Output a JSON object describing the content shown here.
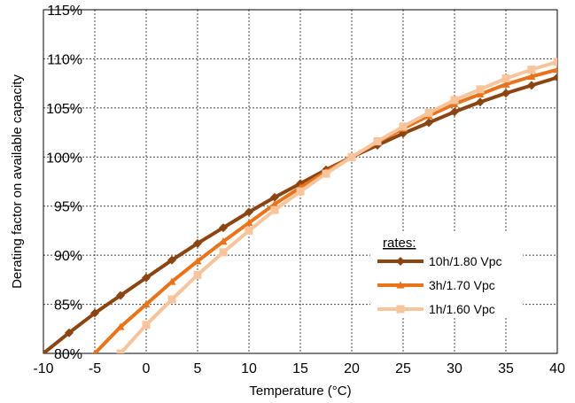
{
  "chart_data": {
    "type": "line",
    "title": "",
    "xlabel": "Temperature (°C)",
    "ylabel": "Derating factor on available capacity",
    "xlim": [
      -10,
      40
    ],
    "ylim": [
      80,
      115
    ],
    "x_ticks": [
      "-10",
      "-5",
      "0",
      "5",
      "10",
      "15",
      "20",
      "25",
      "30",
      "35",
      "40"
    ],
    "y_ticks": [
      "80%",
      "85%",
      "90%",
      "95%",
      "100%",
      "105%",
      "110%",
      "115%"
    ],
    "grid": true,
    "legend": {
      "title": "rates:",
      "placement": "lower-right"
    },
    "series": [
      {
        "name": "10h/1.80 Vpc",
        "color": "#8B4513",
        "marker": "diamond",
        "x": [
          -10,
          -7.5,
          -5,
          -2.5,
          0,
          2.5,
          5,
          7.5,
          10,
          12.5,
          15,
          17.5,
          20,
          22.5,
          25,
          27.5,
          30,
          32.5,
          35,
          37.5,
          40
        ],
        "y": [
          80.0,
          82.1,
          84.1,
          85.9,
          87.7,
          89.5,
          91.2,
          92.8,
          94.4,
          95.9,
          97.3,
          98.7,
          100.0,
          101.2,
          102.4,
          103.5,
          104.6,
          105.6,
          106.5,
          107.3,
          108.1
        ]
      },
      {
        "name": "3h/1.70 Vpc",
        "color": "#E8731A",
        "marker": "triangle",
        "x": [
          -5,
          -2.5,
          0,
          2.5,
          5,
          7.5,
          10,
          12.5,
          15,
          17.5,
          20,
          22.5,
          25,
          27.5,
          30,
          32.5,
          35,
          37.5,
          40
        ],
        "y": [
          80.0,
          82.7,
          85.0,
          87.3,
          89.4,
          91.4,
          93.3,
          95.2,
          96.9,
          98.5,
          100.0,
          101.5,
          102.9,
          104.2,
          105.4,
          106.4,
          107.4,
          108.2,
          108.9
        ]
      },
      {
        "name": "1h/1.60 Vpc",
        "color": "#F7C49C",
        "marker": "square",
        "x": [
          -2.5,
          0,
          2.5,
          5,
          7.5,
          10,
          12.5,
          15,
          17.5,
          20,
          22.5,
          25,
          27.5,
          30,
          32.5,
          35,
          37.5,
          40
        ],
        "y": [
          80.0,
          82.9,
          85.5,
          88.0,
          90.3,
          92.5,
          94.6,
          96.5,
          98.3,
          100.0,
          101.6,
          103.1,
          104.5,
          105.8,
          106.9,
          108.0,
          108.9,
          109.7
        ]
      }
    ]
  }
}
